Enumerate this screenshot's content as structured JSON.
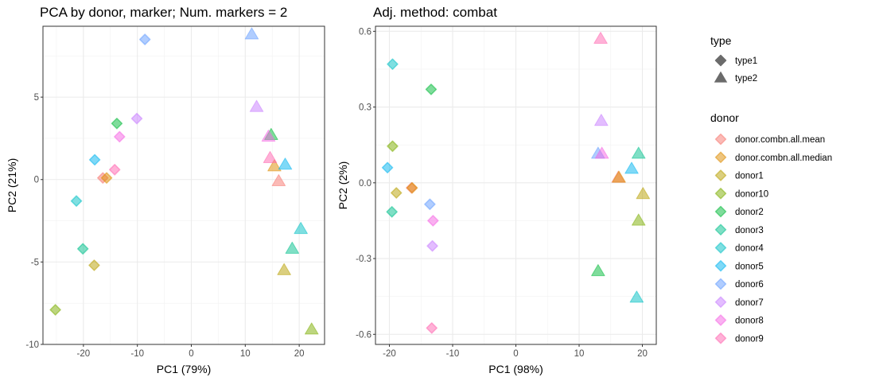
{
  "chart_data": [
    {
      "type": "scatter",
      "title": "PCA by donor, marker; Num. markers = 2",
      "xlabel": "PC1 (79%)",
      "ylabel": "PC2 (21%)",
      "xlim": [
        -27.5,
        24.7
      ],
      "ylim": [
        -10,
        9.3
      ],
      "xticks": [
        -20,
        -10,
        0,
        10,
        20
      ],
      "xtick_labels": [
        "-20",
        "-10",
        "0",
        "10",
        "20"
      ],
      "yticks": [
        -10,
        -5,
        0,
        5
      ],
      "ytick_labels": [
        "-10",
        "-5",
        "0",
        "5"
      ],
      "grid": true,
      "points": [
        {
          "x": -16.4,
          "y": 0.1,
          "donor": "donor.combn.all.mean",
          "type": "type1"
        },
        {
          "x": -15.7,
          "y": 0.1,
          "donor": "donor.combn.all.median",
          "type": "type1"
        },
        {
          "x": -18.0,
          "y": -5.2,
          "donor": "donor1",
          "type": "type1"
        },
        {
          "x": -25.2,
          "y": -7.9,
          "donor": "donor10",
          "type": "type1"
        },
        {
          "x": -13.8,
          "y": 3.4,
          "donor": "donor2",
          "type": "type1"
        },
        {
          "x": -20.1,
          "y": -4.2,
          "donor": "donor3",
          "type": "type1"
        },
        {
          "x": -21.3,
          "y": -1.3,
          "donor": "donor4",
          "type": "type1"
        },
        {
          "x": -17.9,
          "y": 1.2,
          "donor": "donor5",
          "type": "type1"
        },
        {
          "x": -8.6,
          "y": 8.5,
          "donor": "donor6",
          "type": "type1"
        },
        {
          "x": -10.1,
          "y": 3.7,
          "donor": "donor7",
          "type": "type1"
        },
        {
          "x": -13.3,
          "y": 2.6,
          "donor": "donor8",
          "type": "type1"
        },
        {
          "x": -14.2,
          "y": 0.6,
          "donor": "donor9",
          "type": "type1"
        },
        {
          "x": 16.2,
          "y": -0.1,
          "donor": "donor.combn.all.mean",
          "type": "type2"
        },
        {
          "x": 15.4,
          "y": 0.8,
          "donor": "donor.combn.all.median",
          "type": "type2"
        },
        {
          "x": 17.2,
          "y": -5.5,
          "donor": "donor1",
          "type": "type2"
        },
        {
          "x": 22.3,
          "y": -9.1,
          "donor": "donor10",
          "type": "type2"
        },
        {
          "x": 14.8,
          "y": 2.7,
          "donor": "donor2",
          "type": "type2"
        },
        {
          "x": 18.7,
          "y": -4.2,
          "donor": "donor3",
          "type": "type2"
        },
        {
          "x": 20.3,
          "y": -3.0,
          "donor": "donor4",
          "type": "type2"
        },
        {
          "x": 17.4,
          "y": 0.9,
          "donor": "donor5",
          "type": "type2"
        },
        {
          "x": 11.2,
          "y": 8.8,
          "donor": "donor6",
          "type": "type2"
        },
        {
          "x": 12.1,
          "y": 4.4,
          "donor": "donor7",
          "type": "type2"
        },
        {
          "x": 14.3,
          "y": 2.6,
          "donor": "donor8",
          "type": "type2"
        },
        {
          "x": 14.6,
          "y": 1.3,
          "donor": "donor9",
          "type": "type2"
        }
      ]
    },
    {
      "type": "scatter",
      "title": "Adj. method: combat",
      "xlabel": "PC1 (98%)",
      "ylabel": "PC2 (2%)",
      "xlim": [
        -22.2,
        22.2
      ],
      "ylim": [
        -0.64,
        0.62
      ],
      "xticks": [
        -20,
        -10,
        0,
        10,
        20
      ],
      "xtick_labels": [
        "-20",
        "-10",
        "0",
        "10",
        "20"
      ],
      "yticks": [
        -0.6,
        -0.3,
        0.0,
        0.3,
        0.6
      ],
      "ytick_labels": [
        "-0.6",
        "-0.3",
        "0.0",
        "0.3",
        "0.6"
      ],
      "grid": true,
      "points": [
        {
          "x": -16.5,
          "y": -0.02,
          "donor": "donor.combn.all.mean",
          "type": "type1"
        },
        {
          "x": -16.4,
          "y": -0.02,
          "donor": "donor.combn.all.median",
          "type": "type1"
        },
        {
          "x": -18.9,
          "y": -0.04,
          "donor": "donor1",
          "type": "type1"
        },
        {
          "x": -19.5,
          "y": 0.145,
          "donor": "donor10",
          "type": "type1"
        },
        {
          "x": -13.4,
          "y": 0.37,
          "donor": "donor2",
          "type": "type1"
        },
        {
          "x": -19.6,
          "y": -0.115,
          "donor": "donor3",
          "type": "type1"
        },
        {
          "x": -19.5,
          "y": 0.47,
          "donor": "donor4",
          "type": "type1"
        },
        {
          "x": -20.3,
          "y": 0.06,
          "donor": "donor5",
          "type": "type1"
        },
        {
          "x": -13.6,
          "y": -0.085,
          "donor": "donor6",
          "type": "type1"
        },
        {
          "x": -13.2,
          "y": -0.25,
          "donor": "donor7",
          "type": "type1"
        },
        {
          "x": -13.1,
          "y": -0.15,
          "donor": "donor8",
          "type": "type1"
        },
        {
          "x": -13.3,
          "y": -0.575,
          "donor": "donor9",
          "type": "type1"
        },
        {
          "x": 16.2,
          "y": 0.02,
          "donor": "donor.combn.all.mean",
          "type": "type2"
        },
        {
          "x": 16.3,
          "y": 0.02,
          "donor": "donor.combn.all.median",
          "type": "type2"
        },
        {
          "x": 20.1,
          "y": -0.045,
          "donor": "donor1",
          "type": "type2"
        },
        {
          "x": 19.4,
          "y": -0.15,
          "donor": "donor10",
          "type": "type2"
        },
        {
          "x": 13.0,
          "y": -0.35,
          "donor": "donor2",
          "type": "type2"
        },
        {
          "x": 19.4,
          "y": 0.115,
          "donor": "donor3",
          "type": "type2"
        },
        {
          "x": 19.1,
          "y": -0.455,
          "donor": "donor4",
          "type": "type2"
        },
        {
          "x": 18.3,
          "y": 0.055,
          "donor": "donor5",
          "type": "type2"
        },
        {
          "x": 13.0,
          "y": 0.115,
          "donor": "donor6",
          "type": "type2"
        },
        {
          "x": 13.5,
          "y": 0.245,
          "donor": "donor7",
          "type": "type2"
        },
        {
          "x": 13.6,
          "y": 0.115,
          "donor": "donor8",
          "type": "type2"
        },
        {
          "x": 13.4,
          "y": 0.57,
          "donor": "donor9",
          "type": "type2"
        }
      ]
    }
  ],
  "legend": {
    "type_title": "type",
    "types": [
      {
        "label": "type1",
        "icon": "circle-icon"
      },
      {
        "label": "type2",
        "icon": "triangle-icon"
      }
    ],
    "donor_title": "donor",
    "donors": [
      {
        "label": "donor.combn.all.mean",
        "color": "#F8766D"
      },
      {
        "label": "donor.combn.all.median",
        "color": "#DE8C00"
      },
      {
        "label": "donor1",
        "color": "#B79F00"
      },
      {
        "label": "donor10",
        "color": "#7CAE00"
      },
      {
        "label": "donor2",
        "color": "#00BA38"
      },
      {
        "label": "donor3",
        "color": "#00C08B"
      },
      {
        "label": "donor4",
        "color": "#00BFC4"
      },
      {
        "label": "donor5",
        "color": "#00B4F0"
      },
      {
        "label": "donor6",
        "color": "#619CFF"
      },
      {
        "label": "donor7",
        "color": "#C77CFF"
      },
      {
        "label": "donor8",
        "color": "#F564E3"
      },
      {
        "label": "donor9",
        "color": "#FF64B0"
      }
    ]
  }
}
